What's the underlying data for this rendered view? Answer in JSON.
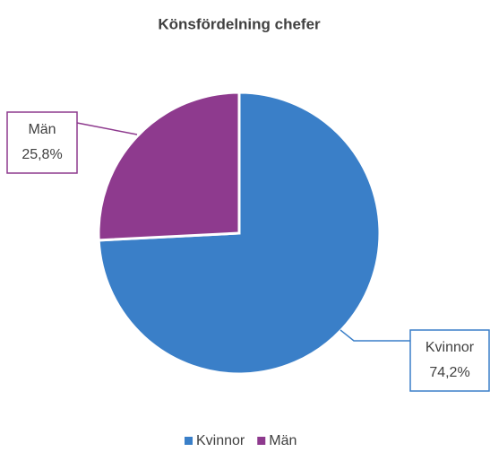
{
  "chart_data": {
    "type": "pie",
    "title": "Könsfördelning chefer",
    "categories": [
      "Kvinnor",
      "Män"
    ],
    "values": [
      74.2,
      25.8
    ],
    "value_labels": [
      "74,2%",
      "25,8%"
    ],
    "colors": [
      "#3a7fc8",
      "#8e3a8e"
    ],
    "legend": "bottom"
  }
}
